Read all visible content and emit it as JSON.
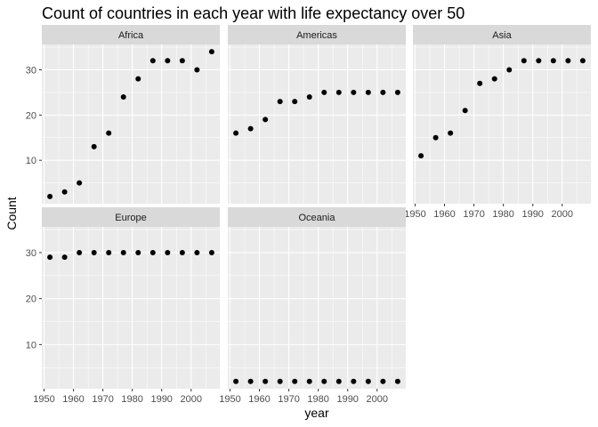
{
  "chart_data": {
    "type": "scatter",
    "title": "Count of countries in each year with life expectancy over 50",
    "xlabel": "year",
    "ylabel": "Count",
    "facet_layout": "wrap 3 columns",
    "panels": [
      {
        "name": "Africa",
        "y": [
          2,
          3,
          5,
          13,
          16,
          24,
          28,
          32,
          32,
          32,
          30,
          34
        ]
      },
      {
        "name": "Americas",
        "y": [
          16,
          17,
          19,
          23,
          23,
          24,
          25,
          25,
          25,
          25,
          25,
          25
        ]
      },
      {
        "name": "Asia",
        "y": [
          11,
          15,
          16,
          21,
          27,
          28,
          30,
          32,
          32,
          32,
          32,
          32
        ]
      },
      {
        "name": "Europe",
        "y": [
          29,
          29,
          30,
          30,
          30,
          30,
          30,
          30,
          30,
          30,
          30,
          30
        ]
      },
      {
        "name": "Oceania",
        "y": [
          2,
          2,
          2,
          2,
          2,
          2,
          2,
          2,
          2,
          2,
          2,
          2
        ]
      }
    ],
    "x": [
      1952,
      1957,
      1962,
      1967,
      1972,
      1977,
      1982,
      1987,
      1992,
      1997,
      2002,
      2007
    ],
    "x_ticks": [
      1950,
      1960,
      1970,
      1980,
      1990,
      2000
    ],
    "y_ticks": [
      10,
      20,
      30
    ],
    "xlim": [
      1949.25,
      2009.75
    ],
    "ylim": [
      0.4,
      35.6
    ],
    "grid": true,
    "colors": {
      "panel_bg": "#EBEBEB",
      "strip_bg": "#D9D9D9",
      "grid_major": "#FFFFFF",
      "point": "#000000",
      "tick_text": "#4D4D4D",
      "strip_text": "#1A1A1A",
      "title_text": "#000000"
    }
  }
}
